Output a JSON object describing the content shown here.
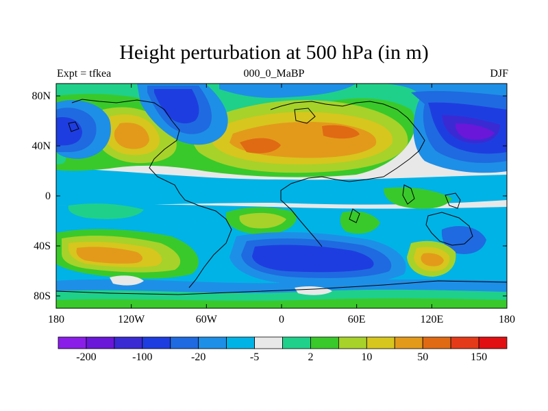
{
  "map": {
    "title": "Height perturbation at 500 hPa (in m)",
    "left_label": "Expt = tfkea",
    "center_label": "000_0_MaBP",
    "right_label": "DJF",
    "x_ticks": [
      "180",
      "120W",
      "60W",
      "0",
      "60E",
      "120E",
      "180"
    ],
    "y_ticks": [
      "80N",
      "40N",
      "0",
      "40S",
      "80S"
    ]
  },
  "colorbar": {
    "colors": [
      "#8a1ee8",
      "#6a17d9",
      "#3a2ad4",
      "#1e3de0",
      "#1f6ae0",
      "#1e8fe6",
      "#00b3e6",
      "#e8e8e8",
      "#1fd08a",
      "#39c92a",
      "#a7d22a",
      "#d7c61d",
      "#e39a1b",
      "#e06a13",
      "#e53a19",
      "#e10f12"
    ],
    "labels": [
      "-200",
      "-100",
      "-20",
      "-5",
      "2",
      "10",
      "50",
      "150"
    ]
  },
  "palette": {
    "land_outline": "#000000"
  }
}
